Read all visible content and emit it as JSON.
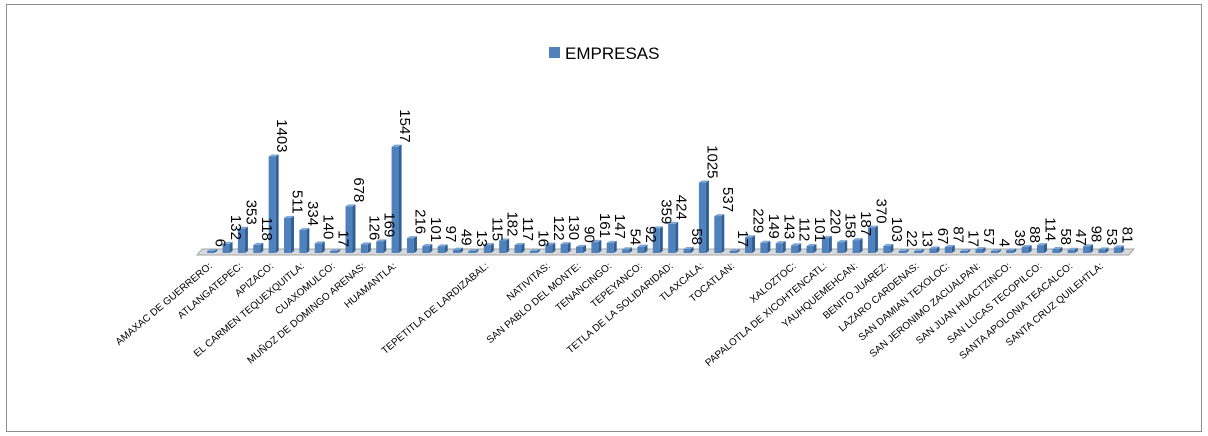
{
  "chart_data": {
    "type": "bar",
    "legend": [
      "EMPRESAS"
    ],
    "legend_position": "top",
    "series": [
      {
        "name": "EMPRESAS",
        "color": "#4f81bd",
        "values": [
          6,
          132,
          353,
          118,
          1403,
          511,
          334,
          140,
          17,
          678,
          126,
          169,
          1547,
          216,
          101,
          97,
          49,
          13,
          115,
          182,
          117,
          16,
          122,
          130,
          90,
          161,
          147,
          54,
          92,
          359,
          424,
          58,
          1025,
          537,
          17,
          229,
          149,
          143,
          112,
          101,
          220,
          158,
          187,
          370,
          103,
          22,
          13,
          67,
          87,
          17,
          57,
          4,
          39,
          88,
          114,
          58,
          47,
          98,
          53,
          81
        ]
      }
    ],
    "categories": [
      "AMAXAC DE GUERRERO:",
      "",
      "ATLANGATEPEC:",
      "",
      "APIZACO:",
      "",
      "EL CARMEN TEQUEXQUITLA:",
      "",
      "CUAXOMULCO:",
      "",
      "MUÑOZ DE DOMINGO ARENAS:",
      "",
      "HUAMANTLA:",
      "",
      "",
      "",
      "",
      "",
      "TEPETITLA DE LARDIZABAL:",
      "",
      "",
      "",
      "NATIVITAS:",
      "",
      "SAN PABLO DEL MONTE:",
      "",
      "TENANCINGO:",
      "",
      "TEPEYANCO:",
      "",
      "TETLA DE LA SOLIDARIDAD:",
      "",
      "TLAXCALA:",
      "",
      "TOCATLAN:",
      "",
      "",
      "",
      "XALOZTOC:",
      "",
      "PAPALOTLA DE XICOHTENCATL:",
      "",
      "YAUHQUEMEHCAN:",
      "",
      "BENITO JUAREZ:",
      "",
      "LAZARO CARDENAS:",
      "",
      "SAN DAMIAN TEXOLOC:",
      "",
      "SAN JERONIMO ZACUALPAN:",
      "",
      "SAN JUAN HUACTZINCO:",
      "",
      "SAN LUCAS TECOPILCO:",
      "",
      "SANTA APOLONIA TEACALCO:",
      "",
      "SANTA CRUZ QUILEHTLA:",
      ""
    ],
    "ylim": [
      0,
      1600
    ],
    "grid": false
  }
}
